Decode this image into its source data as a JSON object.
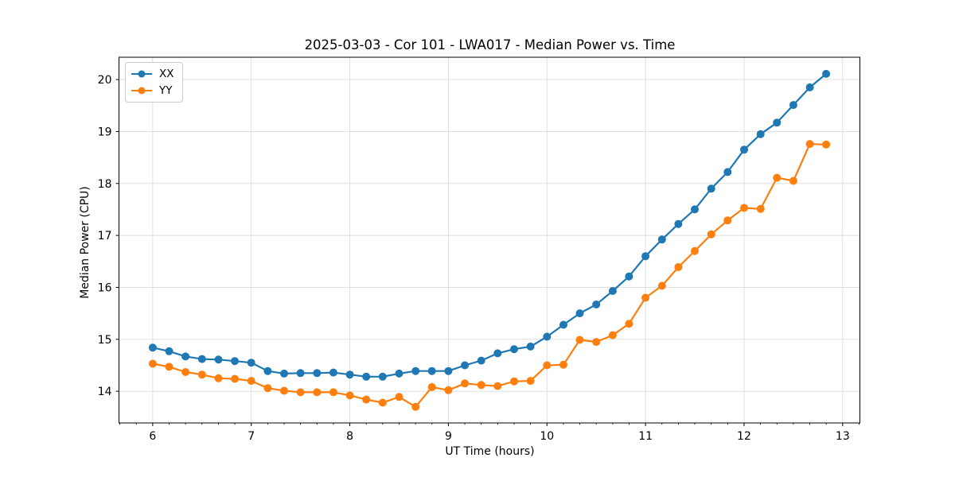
{
  "chart_data": {
    "type": "line",
    "title": "2025-03-03 - Cor 101 - LWA017 - Median Power vs. Time",
    "xlabel": "UT Time (hours)",
    "ylabel": "Median Power (CPU)",
    "xlim": [
      5.658,
      13.175
    ],
    "ylim": [
      13.39,
      20.43
    ],
    "xtick_values": [
      6,
      7,
      8,
      9,
      10,
      11,
      12,
      13
    ],
    "xtick_labels": [
      "6",
      "7",
      "8",
      "9",
      "10",
      "11",
      "12",
      "13"
    ],
    "ytick_values": [
      14,
      15,
      16,
      17,
      18,
      19,
      20
    ],
    "ytick_labels": [
      "14",
      "15",
      "16",
      "17",
      "18",
      "19",
      "20"
    ],
    "x_minor_ticks_per_hour": 6,
    "grid": true,
    "legend_position": "upper-left",
    "colors": {
      "grid": "#dcdcdc",
      "spine": "#000000",
      "text": "#000000"
    },
    "x": [
      6.0,
      6.167,
      6.333,
      6.5,
      6.667,
      6.833,
      7.0,
      7.167,
      7.333,
      7.5,
      7.667,
      7.833,
      8.0,
      8.167,
      8.333,
      8.5,
      8.667,
      8.833,
      9.0,
      9.167,
      9.333,
      9.5,
      9.667,
      9.833,
      10.0,
      10.167,
      10.333,
      10.5,
      10.667,
      10.833,
      11.0,
      11.167,
      11.333,
      11.5,
      11.667,
      11.833,
      12.0,
      12.167,
      12.333,
      12.5,
      12.667,
      12.833
    ],
    "series": [
      {
        "name": "XX",
        "color": "#1f77b4",
        "values": [
          14.84,
          14.77,
          14.67,
          14.62,
          14.61,
          14.58,
          14.55,
          14.39,
          14.34,
          14.35,
          14.35,
          14.36,
          14.32,
          14.28,
          14.28,
          14.34,
          14.39,
          14.39,
          14.39,
          14.5,
          14.59,
          14.73,
          14.81,
          14.86,
          15.05,
          15.28,
          15.5,
          15.67,
          15.93,
          16.21,
          16.6,
          16.92,
          17.22,
          17.5,
          17.9,
          18.22,
          18.65,
          18.95,
          19.17,
          19.51,
          19.85,
          20.11
        ]
      },
      {
        "name": "YY",
        "color": "#ff7f0e",
        "values": [
          14.53,
          14.47,
          14.37,
          14.32,
          14.25,
          14.24,
          14.2,
          14.06,
          14.01,
          13.98,
          13.98,
          13.98,
          13.92,
          13.84,
          13.78,
          13.89,
          13.7,
          14.08,
          14.02,
          14.15,
          14.12,
          14.1,
          14.19,
          14.2,
          14.5,
          14.51,
          14.99,
          14.95,
          15.08,
          15.3,
          15.8,
          16.03,
          16.39,
          16.7,
          17.02,
          17.29,
          17.53,
          17.51,
          18.11,
          18.05,
          18.76,
          18.75
        ]
      }
    ]
  }
}
